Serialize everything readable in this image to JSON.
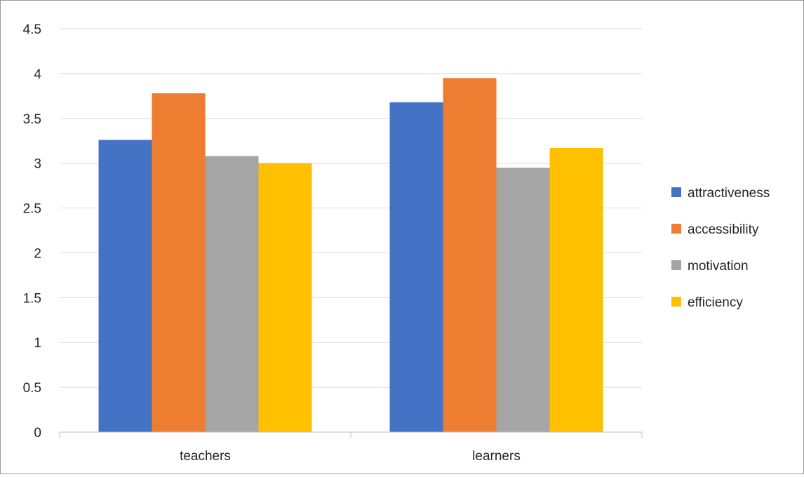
{
  "chart_data": {
    "type": "bar",
    "title": "",
    "xlabel": "",
    "ylabel": "",
    "categories": [
      "teachers",
      "learners"
    ],
    "series": [
      {
        "name": "attractiveness",
        "values": [
          3.26,
          3.68
        ]
      },
      {
        "name": "accessibility",
        "values": [
          3.78,
          3.95
        ]
      },
      {
        "name": "motivation",
        "values": [
          3.08,
          2.95
        ]
      },
      {
        "name": "efficiency",
        "values": [
          3.0,
          3.17
        ]
      }
    ],
    "ylim": [
      0,
      4.5
    ],
    "yticks": [
      "0",
      "0.5",
      "1",
      "1.5",
      "2",
      "2.5",
      "3",
      "3.5",
      "4",
      "4.5"
    ],
    "grid": true,
    "legend_position": "right",
    "colors": {
      "attractiveness": "#4472C4",
      "accessibility": "#ED7D31",
      "motivation": "#A5A5A5",
      "efficiency": "#FFC000",
      "gridline": "#D9D9D9",
      "axis": "#BFBFBF"
    }
  }
}
